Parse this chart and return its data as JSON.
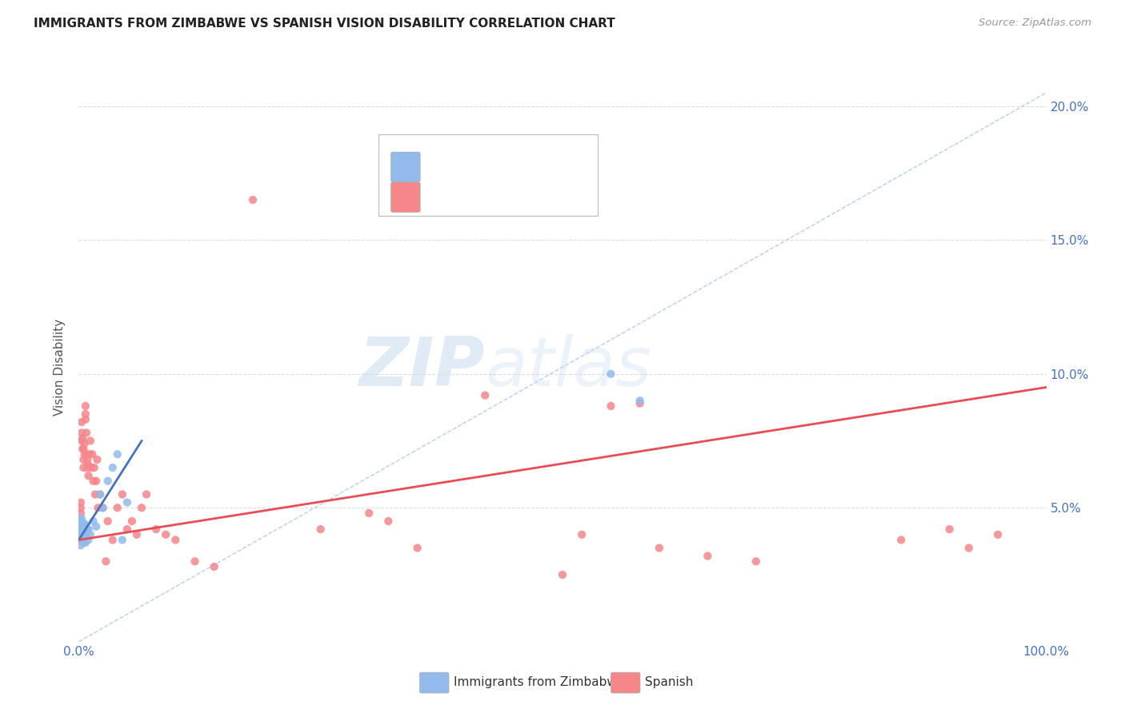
{
  "title": "IMMIGRANTS FROM ZIMBABWE VS SPANISH VISION DISABILITY CORRELATION CHART",
  "source": "Source: ZipAtlas.com",
  "ylabel": "Vision Disability",
  "xlim": [
    0,
    1.0
  ],
  "ylim": [
    0,
    0.205
  ],
  "legend_blue_label": "Immigrants from Zimbabwe",
  "legend_pink_label": "Spanish",
  "blue_color": "#92BBEC",
  "pink_color": "#F5868A",
  "blue_line_color": "#4472C4",
  "pink_line_color": "#E84C55",
  "r_color_blue": "#4472C4",
  "r_color_pink": "#E84C55",
  "n_color_blue": "#E84C55",
  "n_color_pink": "#4472C4",
  "watermark_zip": "ZIP",
  "watermark_atlas": "atlas",
  "background_color": "#FFFFFF",
  "grid_color": "#DDDDDD",
  "blue_scatter_x": [
    0.001,
    0.001,
    0.001,
    0.001,
    0.001,
    0.002,
    0.002,
    0.002,
    0.002,
    0.002,
    0.003,
    0.003,
    0.003,
    0.003,
    0.004,
    0.004,
    0.004,
    0.005,
    0.005,
    0.005,
    0.005,
    0.006,
    0.006,
    0.006,
    0.007,
    0.007,
    0.008,
    0.009,
    0.01,
    0.01,
    0.012,
    0.015,
    0.018,
    0.022,
    0.025,
    0.03,
    0.035,
    0.04,
    0.045,
    0.05,
    0.55,
    0.58
  ],
  "blue_scatter_y": [
    0.038,
    0.04,
    0.042,
    0.044,
    0.046,
    0.036,
    0.038,
    0.04,
    0.042,
    0.045,
    0.038,
    0.04,
    0.043,
    0.046,
    0.038,
    0.04,
    0.044,
    0.037,
    0.039,
    0.041,
    0.044,
    0.038,
    0.041,
    0.044,
    0.037,
    0.041,
    0.04,
    0.042,
    0.038,
    0.042,
    0.04,
    0.045,
    0.043,
    0.055,
    0.05,
    0.06,
    0.065,
    0.07,
    0.038,
    0.052,
    0.1,
    0.09
  ],
  "pink_scatter_x": [
    0.001,
    0.001,
    0.001,
    0.002,
    0.002,
    0.002,
    0.003,
    0.003,
    0.003,
    0.004,
    0.004,
    0.005,
    0.005,
    0.005,
    0.006,
    0.006,
    0.007,
    0.007,
    0.007,
    0.008,
    0.008,
    0.009,
    0.009,
    0.01,
    0.01,
    0.011,
    0.012,
    0.013,
    0.014,
    0.015,
    0.016,
    0.017,
    0.018,
    0.019,
    0.02,
    0.022,
    0.025,
    0.028,
    0.03,
    0.035,
    0.04,
    0.045,
    0.05,
    0.055,
    0.06,
    0.065,
    0.07,
    0.08,
    0.09,
    0.1,
    0.12,
    0.14,
    0.18,
    0.25,
    0.3,
    0.32,
    0.35,
    0.42,
    0.5,
    0.52,
    0.55,
    0.58,
    0.6,
    0.65,
    0.7,
    0.85,
    0.9,
    0.92,
    0.95
  ],
  "pink_scatter_y": [
    0.04,
    0.045,
    0.042,
    0.05,
    0.052,
    0.048,
    0.075,
    0.082,
    0.078,
    0.072,
    0.076,
    0.068,
    0.072,
    0.065,
    0.07,
    0.074,
    0.085,
    0.088,
    0.083,
    0.078,
    0.07,
    0.065,
    0.068,
    0.062,
    0.066,
    0.07,
    0.075,
    0.065,
    0.07,
    0.06,
    0.065,
    0.055,
    0.06,
    0.068,
    0.05,
    0.055,
    0.05,
    0.03,
    0.045,
    0.038,
    0.05,
    0.055,
    0.042,
    0.045,
    0.04,
    0.05,
    0.055,
    0.042,
    0.04,
    0.038,
    0.03,
    0.028,
    0.165,
    0.042,
    0.048,
    0.045,
    0.035,
    0.092,
    0.025,
    0.04,
    0.088,
    0.089,
    0.035,
    0.032,
    0.03,
    0.038,
    0.042,
    0.035,
    0.04
  ],
  "blue_trendline_x": [
    0.0,
    0.065
  ],
  "blue_trendline_y": [
    0.038,
    0.075
  ],
  "pink_trendline_x": [
    0.0,
    1.0
  ],
  "pink_trendline_y": [
    0.038,
    0.095
  ],
  "diag_line_x": [
    0.0,
    1.0
  ],
  "diag_line_y": [
    0.0,
    0.205
  ]
}
